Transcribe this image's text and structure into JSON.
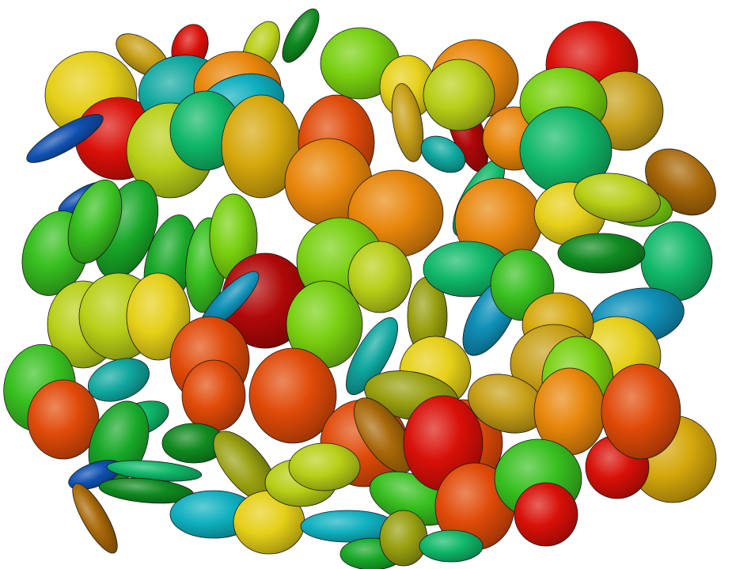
{
  "scene": {
    "background": "#ffffff",
    "outline": "#1a1a1a",
    "palette": {
      "red": "#d81008",
      "deep_red": "#b00808",
      "red_orange": "#e04a08",
      "orange": "#e8860a",
      "amber": "#d6a80c",
      "gold": "#c8a018",
      "yellow": "#e6d018",
      "yellow_green": "#b8d018",
      "lime": "#78d010",
      "green": "#38c020",
      "mid_green": "#18a828",
      "dark_green": "#108a20",
      "teal_green": "#10b868",
      "teal": "#10a8a0",
      "cyan": "#10b0c0",
      "blue_teal": "#1090b8",
      "blue": "#1050b0",
      "bronze": "#a86808",
      "olive": "#98a010"
    }
  }
}
